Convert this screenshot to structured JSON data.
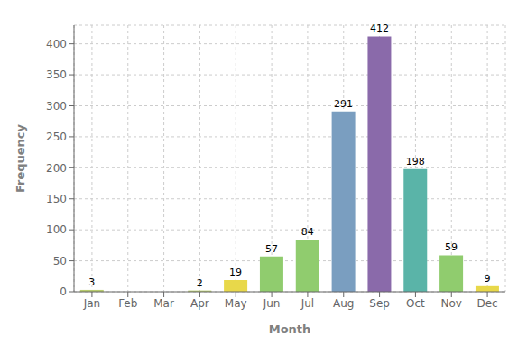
{
  "chart_data": {
    "type": "bar",
    "categories": [
      "Jan",
      "Feb",
      "Mar",
      "Apr",
      "May",
      "Jun",
      "Jul",
      "Aug",
      "Sep",
      "Oct",
      "Nov",
      "Dec"
    ],
    "values": [
      3,
      0,
      0,
      2,
      19,
      57,
      84,
      291,
      412,
      198,
      59,
      9
    ],
    "colors": [
      "#b8cc6e",
      "#b8cc6e",
      "#b8cc6e",
      "#b8cc6e",
      "#e8d84a",
      "#90cc6e",
      "#90cc6e",
      "#7a9ec0",
      "#8a6aaa",
      "#5ab4a8",
      "#90cc6e",
      "#e8d84a"
    ],
    "xlabel": "Month",
    "ylabel": "Frequency",
    "ylim": [
      0,
      430
    ],
    "yticks": [
      0,
      50,
      100,
      150,
      200,
      250,
      300,
      350,
      400
    ],
    "grid": true,
    "data_labels": true
  }
}
